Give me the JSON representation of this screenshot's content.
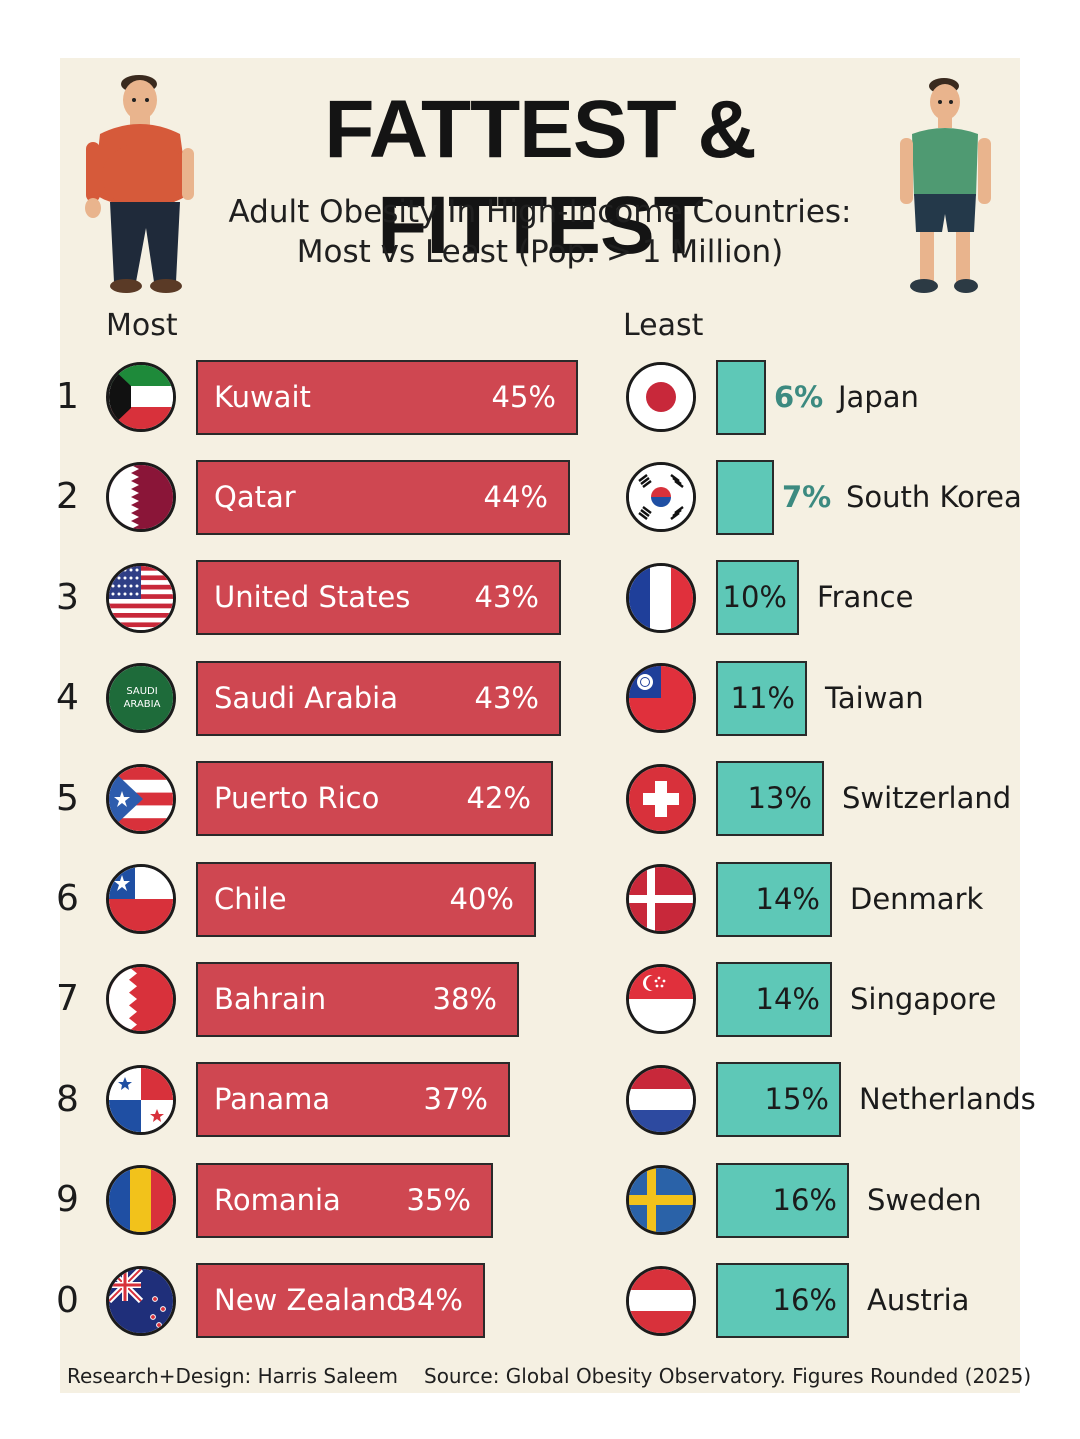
{
  "header": {
    "title": "FATTEST & FITTEST",
    "subtitle_line1": "Adult Obesity In High-Income Countries:",
    "subtitle_line2": "Most vs Least (Pop. > 1 Million)"
  },
  "columns": {
    "most_label": "Most",
    "least_label": "Least"
  },
  "colors": {
    "most_bar": "#cf4751",
    "least_bar": "#5ec8b7",
    "background": "#f5f0e2",
    "least_value_text": "#3c8a80"
  },
  "chart_data": [
    {
      "type": "bar",
      "title": "Most",
      "orientation": "horizontal",
      "unit": "%",
      "ranks": [
        "1",
        "2",
        "3",
        "4",
        "5",
        "6",
        "7",
        "8",
        "9",
        "0"
      ],
      "categories": [
        "Kuwait",
        "Qatar",
        "United States",
        "Saudi Arabia",
        "Puerto Rico",
        "Chile",
        "Bahrain",
        "Panama",
        "Romania",
        "New Zealand"
      ],
      "values": [
        45,
        44,
        43,
        43,
        42,
        40,
        38,
        37,
        35,
        34
      ],
      "value_labels": [
        "45%",
        "44%",
        "43%",
        "43%",
        "42%",
        "40%",
        "38%",
        "37%",
        "35%",
        "34%"
      ],
      "flag_icons": [
        "kuwait-flag-icon",
        "qatar-flag-icon",
        "united-states-flag-icon",
        "saudi-arabia-flag-icon",
        "puerto-rico-flag-icon",
        "chile-flag-icon",
        "bahrain-flag-icon",
        "panama-flag-icon",
        "romania-flag-icon",
        "new-zealand-flag-icon"
      ],
      "flag_texts": [
        "",
        "",
        "",
        "SAUDI ARABIA",
        "",
        "",
        "",
        "",
        "",
        ""
      ]
    },
    {
      "type": "bar",
      "title": "Least",
      "orientation": "horizontal",
      "unit": "%",
      "categories": [
        "Japan",
        "South Korea",
        "France",
        "Taiwan",
        "Switzerland",
        "Denmark",
        "Singapore",
        "Netherlands",
        "Sweden",
        "Austria"
      ],
      "values": [
        6,
        7,
        10,
        11,
        13,
        14,
        14,
        15,
        16,
        16
      ],
      "value_labels": [
        "6%",
        "7%",
        "10%",
        "11%",
        "13%",
        "14%",
        "14%",
        "15%",
        "16%",
        "16%"
      ],
      "flag_icons": [
        "japan-flag-icon",
        "south-korea-flag-icon",
        "france-flag-icon",
        "taiwan-flag-icon",
        "switzerland-flag-icon",
        "denmark-flag-icon",
        "singapore-flag-icon",
        "netherlands-flag-icon",
        "sweden-flag-icon",
        "austria-flag-icon"
      ]
    }
  ],
  "footer": {
    "credit": "Research+Design: Harris Saleem",
    "source": "Source: Global Obesity Observatory. Figures Rounded (2025)"
  },
  "illustrations": {
    "left": "overweight-man-icon",
    "right": "fit-man-icon"
  }
}
